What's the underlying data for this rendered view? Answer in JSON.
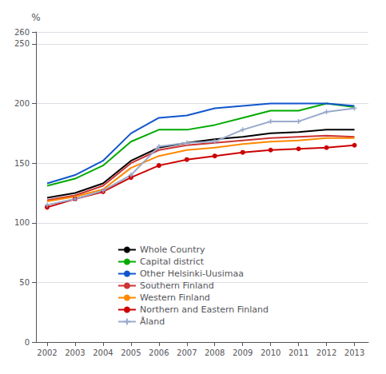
{
  "chart_data": {
    "type": "line",
    "x": [
      2002,
      2003,
      2004,
      2005,
      2006,
      2007,
      2008,
      2009,
      2010,
      2011,
      2012,
      2013
    ],
    "series": [
      {
        "name": "Whole Country",
        "color": "#000000",
        "values": [
          121,
          125,
          133,
          152,
          163,
          167,
          170,
          172,
          175,
          176,
          178,
          178
        ]
      },
      {
        "name": "Capital district",
        "color": "#00aa00",
        "values": [
          131,
          137,
          148,
          168,
          178,
          178,
          182,
          188,
          194,
          194,
          200,
          197
        ]
      },
      {
        "name": "Other Helsinki-Uusimaa",
        "color": "#1155cc",
        "values": [
          133,
          140,
          152,
          175,
          188,
          190,
          196,
          198,
          200,
          200,
          200,
          198
        ]
      },
      {
        "name": "Southern Finland",
        "color": "#cc3333",
        "values": [
          119,
          123,
          131,
          150,
          161,
          165,
          167,
          169,
          171,
          172,
          173,
          172
        ]
      },
      {
        "name": "Western Finland",
        "color": "#ff8800",
        "values": [
          118,
          122,
          128,
          146,
          156,
          161,
          163,
          166,
          168,
          169,
          171,
          171
        ]
      },
      {
        "name": "Northern and Eastern Finland",
        "color": "#cc0000",
        "marker": "circle",
        "values": [
          113,
          120,
          126,
          138,
          148,
          153,
          156,
          159,
          161,
          162,
          163,
          165
        ]
      },
      {
        "name": "Åland",
        "color": "#99aacc",
        "marker": "plus",
        "values": [
          115,
          120,
          127,
          140,
          164,
          167,
          168,
          178,
          185,
          185,
          193,
          196
        ]
      }
    ],
    "ylabel": "%",
    "xlim": [
      2001.6,
      2013.5
    ],
    "xticks": [
      2002,
      2003,
      2004,
      2005,
      2006,
      2007,
      2008,
      2009,
      2010,
      2011,
      2012,
      2013
    ],
    "ylim": [
      0,
      260
    ],
    "yticks": [
      0,
      50,
      100,
      150,
      200,
      250
    ],
    "grid": true,
    "legend": "lower center"
  }
}
